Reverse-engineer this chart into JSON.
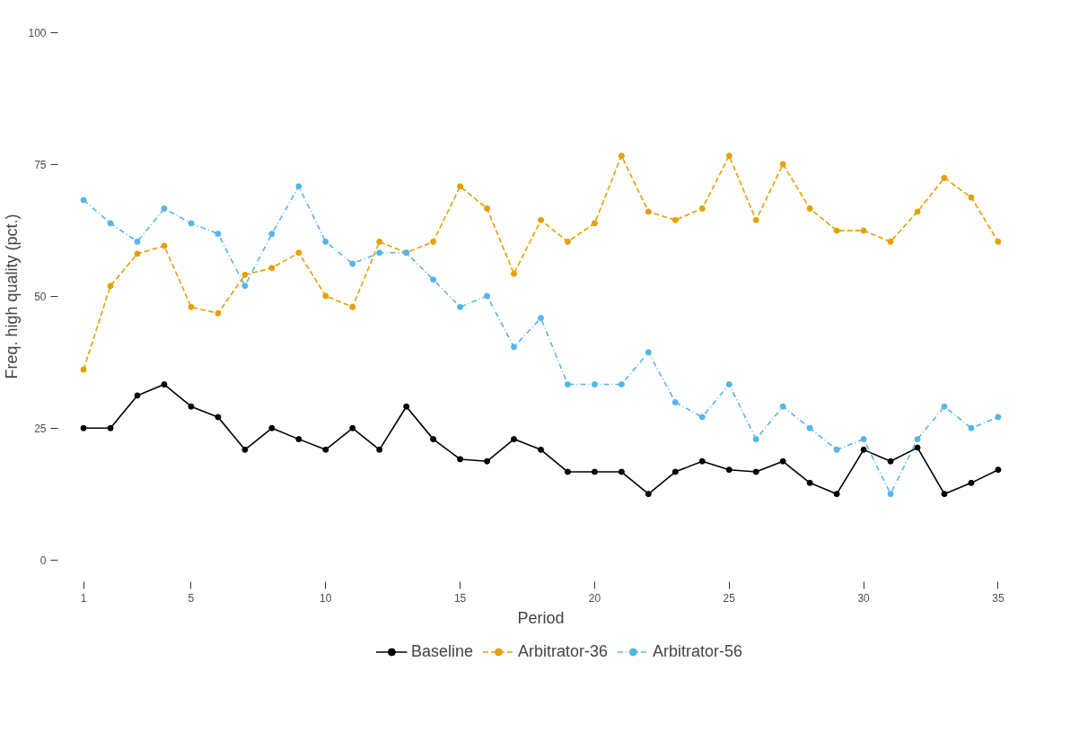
{
  "chart_data": {
    "type": "line",
    "xlabel": "Period",
    "ylabel": "Freq. high quality (pct.)",
    "x": [
      1,
      2,
      3,
      4,
      5,
      6,
      7,
      8,
      9,
      10,
      11,
      12,
      13,
      14,
      15,
      16,
      17,
      18,
      19,
      20,
      21,
      22,
      23,
      24,
      25,
      26,
      27,
      28,
      29,
      30,
      31,
      32,
      33,
      34,
      35
    ],
    "series": [
      {
        "name": "Baseline",
        "color": "#000000",
        "line_style": "solid",
        "values": [
          25,
          25,
          31.2,
          33.3,
          29.1,
          27.1,
          20.9,
          25,
          22.9,
          20.9,
          25,
          20.9,
          29.1,
          22.9,
          19.1,
          18.7,
          22.9,
          20.9,
          16.7,
          16.7,
          16.7,
          12.5,
          16.7,
          18.7,
          17.1,
          16.7,
          18.7,
          14.6,
          12.5,
          20.9,
          18.7,
          21.3,
          12.5,
          14.6,
          17.1
        ]
      },
      {
        "name": "Arbitrator-36",
        "color": "#e69f00",
        "line_style": "dashed",
        "values": [
          36.1,
          52,
          58.1,
          59.6,
          48,
          46.8,
          54.1,
          55.4,
          58.3,
          50.1,
          48,
          60.4,
          58.3,
          60.4,
          70.9,
          66.7,
          54.3,
          64.5,
          60.4,
          63.9,
          76.7,
          66.1,
          64.5,
          66.7,
          76.7,
          64.5,
          75.1,
          66.7,
          62.5,
          62.5,
          60.4,
          66.1,
          72.5,
          68.8,
          60.4
        ]
      },
      {
        "name": "Arbitrator-56",
        "color": "#56b4e9",
        "line_style": "dashdot",
        "values": [
          68.3,
          63.9,
          60.4,
          66.7,
          63.9,
          61.9,
          52,
          61.9,
          70.9,
          60.4,
          56.2,
          58.3,
          58.3,
          53.2,
          48,
          50.1,
          40.4,
          45.9,
          33.3,
          33.3,
          33.3,
          39.4,
          29.9,
          27.1,
          33.3,
          22.9,
          29.1,
          25,
          20.9,
          22.9,
          12.5,
          22.9,
          29.1,
          25,
          27.1
        ]
      }
    ],
    "xlim": [
      1,
      35
    ],
    "xticks": [
      1,
      5,
      10,
      15,
      20,
      25,
      30,
      35
    ],
    "ylim": [
      0,
      100
    ],
    "yticks": [
      0,
      25,
      50,
      75,
      100
    ],
    "marker": "circle",
    "grid": false,
    "legend": "bottom"
  }
}
